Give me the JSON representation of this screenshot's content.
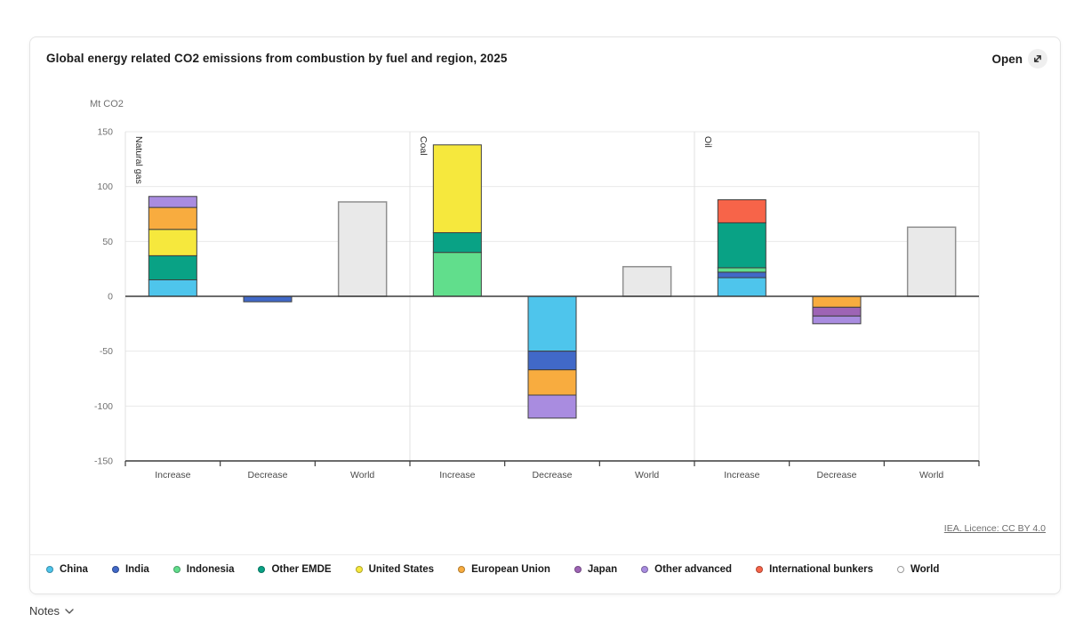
{
  "header": {
    "title": "Global energy related CO2 emissions from combustion by fuel and region, 2025",
    "open_label": "Open"
  },
  "chart_data": {
    "type": "bar",
    "stacked": true,
    "unit_label": "Mt CO2",
    "ylim": [
      -150,
      150
    ],
    "yticks": [
      150,
      100,
      50,
      0,
      -50,
      -100,
      -150
    ],
    "categories": [
      "Increase",
      "Decrease",
      "World"
    ],
    "colors": {
      "China": "#4ec5ec",
      "India": "#4169c8",
      "Indonesia": "#61de8c",
      "Other EMDE": "#09a285",
      "United States": "#f6e83d",
      "European Union": "#f8ac3f",
      "Japan": "#9e64b5",
      "Other advanced": "#a98ce0",
      "International bunkers": "#f76449",
      "World": "#e9e9e9"
    },
    "panels": [
      {
        "label": "Natural gas",
        "bars": [
          {
            "category": "Increase",
            "segments": [
              {
                "series": "China",
                "value": 15
              },
              {
                "series": "Other EMDE",
                "value": 22
              },
              {
                "series": "United States",
                "value": 24
              },
              {
                "series": "European Union",
                "value": 20
              },
              {
                "series": "Other advanced",
                "value": 10
              }
            ]
          },
          {
            "category": "Decrease",
            "segments": [
              {
                "series": "India",
                "value": -5
              }
            ]
          },
          {
            "category": "World",
            "segments": [
              {
                "series": "World",
                "value": 86
              }
            ]
          }
        ]
      },
      {
        "label": "Coal",
        "bars": [
          {
            "category": "Increase",
            "segments": [
              {
                "series": "Indonesia",
                "value": 40
              },
              {
                "series": "Other EMDE",
                "value": 18
              },
              {
                "series": "United States",
                "value": 80
              }
            ]
          },
          {
            "category": "Decrease",
            "segments": [
              {
                "series": "China",
                "value": -50
              },
              {
                "series": "India",
                "value": -17
              },
              {
                "series": "European Union",
                "value": -23
              },
              {
                "series": "Other advanced",
                "value": -21
              }
            ]
          },
          {
            "category": "World",
            "segments": [
              {
                "series": "World",
                "value": 27
              }
            ]
          }
        ]
      },
      {
        "label": "Oil",
        "bars": [
          {
            "category": "Increase",
            "segments": [
              {
                "series": "China",
                "value": 17
              },
              {
                "series": "India",
                "value": 5
              },
              {
                "series": "Indonesia",
                "value": 4
              },
              {
                "series": "Other EMDE",
                "value": 41
              },
              {
                "series": "International bunkers",
                "value": 21
              }
            ]
          },
          {
            "category": "Decrease",
            "segments": [
              {
                "series": "European Union",
                "value": -10
              },
              {
                "series": "Japan",
                "value": -8
              },
              {
                "series": "Other advanced",
                "value": -7
              }
            ]
          },
          {
            "category": "World",
            "segments": [
              {
                "series": "World",
                "value": 63
              }
            ]
          }
        ]
      }
    ]
  },
  "legend": {
    "items": [
      "China",
      "India",
      "Indonesia",
      "Other EMDE",
      "United States",
      "European Union",
      "Japan",
      "Other advanced",
      "International bunkers",
      "World"
    ]
  },
  "footer": {
    "licence": "IEA. Licence: CC BY 4.0",
    "notes_label": "Notes"
  }
}
